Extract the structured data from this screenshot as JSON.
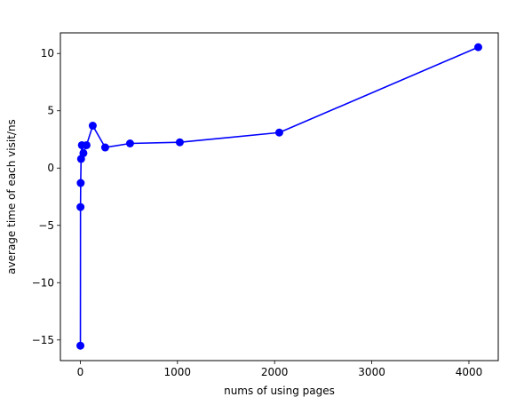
{
  "chart_data": {
    "type": "line",
    "title": "",
    "xlabel": "nums of using pages",
    "ylabel": "average time of each visit/ns",
    "xlim": [
      -205,
      4302
    ],
    "ylim": [
      -16.8,
      11.8
    ],
    "xticks": [
      0,
      1000,
      2000,
      3000,
      4000
    ],
    "xtick_labels": [
      "0",
      "1000",
      "2000",
      "3000",
      "4000"
    ],
    "yticks": [
      -15,
      -10,
      -5,
      0,
      5,
      10
    ],
    "ytick_labels": [
      "−15",
      "−10",
      "−5",
      "0",
      "5",
      "10"
    ],
    "grid": false,
    "legend": "none",
    "series": [
      {
        "color": "#0000ff",
        "marker": "circle",
        "x": [
          1,
          2,
          4,
          8,
          16,
          32,
          64,
          128,
          256,
          512,
          1024,
          2048,
          4096
        ],
        "y": [
          -15.5,
          -3.4,
          -1.3,
          0.8,
          2.0,
          1.3,
          2.0,
          3.7,
          1.8,
          2.15,
          2.25,
          3.1,
          10.55
        ]
      }
    ]
  }
}
